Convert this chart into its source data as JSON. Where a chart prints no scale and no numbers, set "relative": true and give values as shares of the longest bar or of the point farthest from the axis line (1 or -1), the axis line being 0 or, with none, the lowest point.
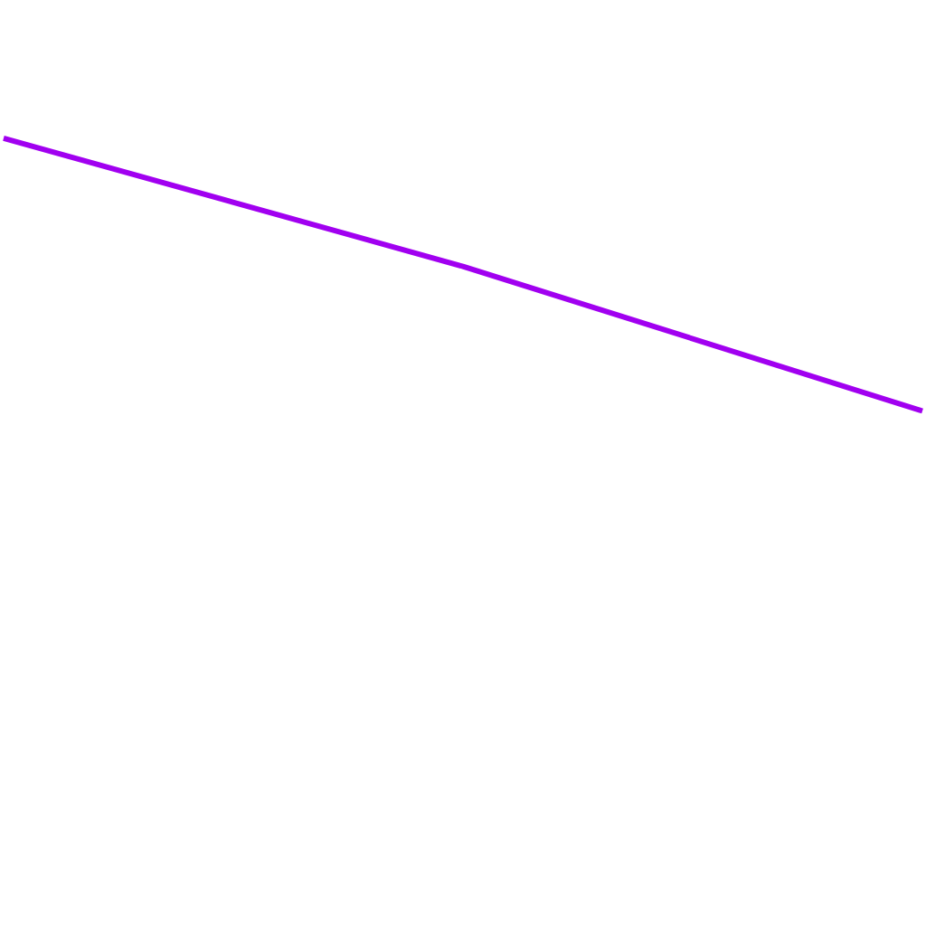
{
  "chart_data": {
    "type": "line",
    "relative": true,
    "categories": [
      null,
      null,
      null
    ],
    "series": [
      {
        "color": "#a100f0",
        "values": [
          1,
          0.53,
          0
        ]
      }
    ],
    "grid": false,
    "legend": false,
    "tick_labels": false,
    "marker": "none",
    "line_style": "solid"
  }
}
